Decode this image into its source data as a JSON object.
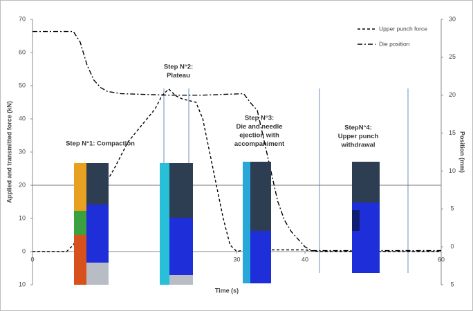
{
  "chart_data": {
    "type": "line",
    "x_label": "Time (s)",
    "y_label": "Applied and transmitted force (kN)",
    "y2_label": "Position (mm)",
    "xlim": [
      0,
      60
    ],
    "xticks": [
      0,
      30,
      40,
      60
    ],
    "ylim": [
      -10,
      70
    ],
    "yticks": [
      {
        "value": -10,
        "label": "10"
      },
      0,
      10,
      20,
      30,
      40,
      50,
      60,
      70
    ],
    "y2lim": [
      -5,
      30
    ],
    "y2ticks": [
      {
        "value": -5,
        "label": "5"
      },
      0,
      5,
      10,
      15,
      20,
      25,
      30
    ],
    "series": [
      {
        "name": "Upper punch force",
        "color": "#000000",
        "dash": "4,3",
        "x": [
          0,
          5,
          6,
          8,
          10,
          12,
          14,
          16,
          18,
          19,
          20,
          21,
          22,
          24,
          25,
          26,
          27,
          28,
          29,
          30,
          31,
          35,
          40,
          42,
          60
        ],
        "values": [
          0,
          0,
          2,
          10,
          18,
          25,
          33,
          38,
          43,
          47,
          49,
          47,
          46,
          45,
          40,
          30,
          20,
          10,
          2,
          0,
          0.5,
          0.5,
          0.5,
          0,
          0
        ]
      },
      {
        "name": "Die position",
        "color": "#000000",
        "dash": "7,3,2,3",
        "axis": "y2",
        "x": [
          0,
          6,
          7,
          8,
          9,
          10,
          11,
          13,
          20,
          25,
          31,
          32,
          33,
          34,
          35,
          36,
          37,
          38,
          39,
          40,
          41,
          60
        ],
        "values": [
          28.4,
          28.4,
          27,
          24,
          22,
          21,
          20.5,
          20.2,
          20,
          20,
          20.2,
          19,
          18,
          14,
          10,
          6,
          3.5,
          2,
          1,
          0,
          -0.5,
          -0.5
        ]
      }
    ],
    "annotations": [
      [
        "Step N°1: Compaction"
      ],
      [
        "Step N°2:",
        "Plateau"
      ],
      [
        "Step N°3:",
        "Die and needle",
        "ejection with",
        "accompaniment"
      ],
      [
        "StepN°4:",
        "Upper punch",
        "withdrawal"
      ]
    ]
  }
}
